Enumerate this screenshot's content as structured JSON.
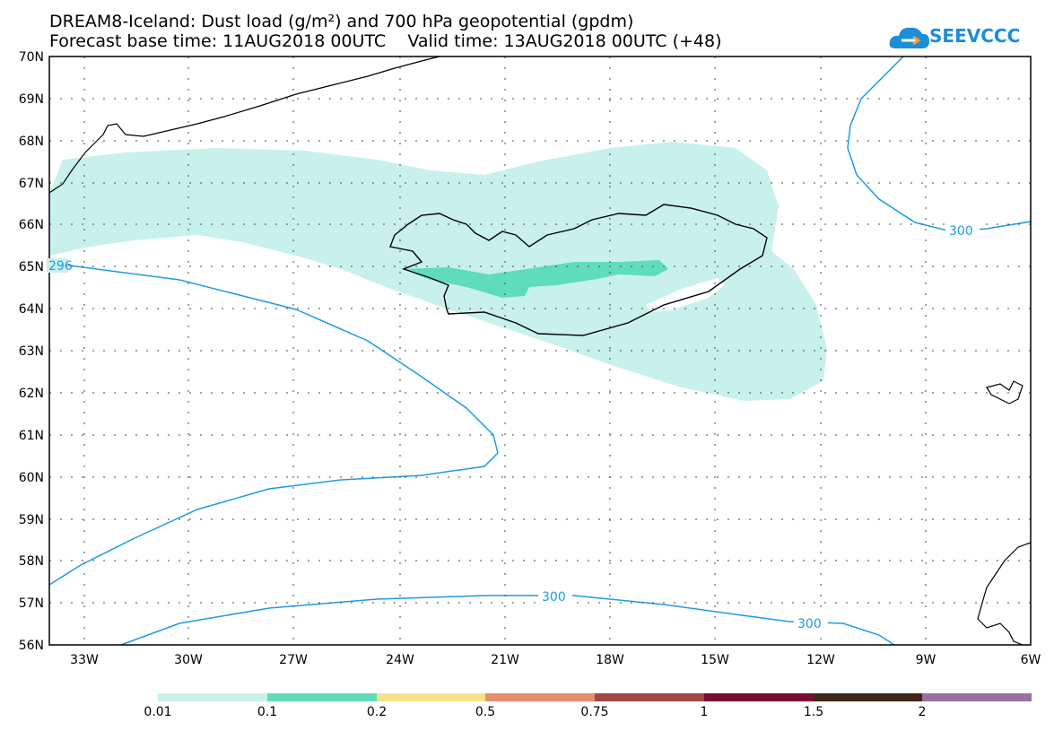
{
  "title_line1": "DREAM8-Iceland: Dust load (g/m²) and 700 hPa geopotential (gpdm)",
  "title_line2": "Forecast base time: 11AUG2018 00UTC    Valid time: 13AUG2018 00UTC (+48)",
  "logo_text": "SEEVCCC",
  "lat_labels": [
    "70N",
    "69N",
    "68N",
    "67N",
    "66N",
    "65N",
    "64N",
    "63N",
    "62N",
    "61N",
    "60N",
    "59N",
    "58N",
    "57N",
    "56N"
  ],
  "lon_labels": [
    "33W",
    "30W",
    "27W",
    "24W",
    "21W",
    "18W",
    "15W",
    "12W",
    "9W",
    "6W"
  ],
  "contour_labels": [
    "296",
    "300",
    "300",
    "300"
  ],
  "colorbar": {
    "labels": [
      "0.01",
      "0.1",
      "0.2",
      "0.5",
      "0.75",
      "1",
      "1.5",
      "2"
    ],
    "colors": [
      "#c8f1ec",
      "#5fdcba",
      "#f4e38b",
      "#e68e6c",
      "#9c4a45",
      "#7a0b32",
      "#3f2816",
      "#9a6ea6"
    ]
  },
  "colors": {
    "dust_light": "#c8f1ec",
    "dust_medium": "#5fdcba",
    "contour": "#1e9be6",
    "coast": "#000000"
  }
}
